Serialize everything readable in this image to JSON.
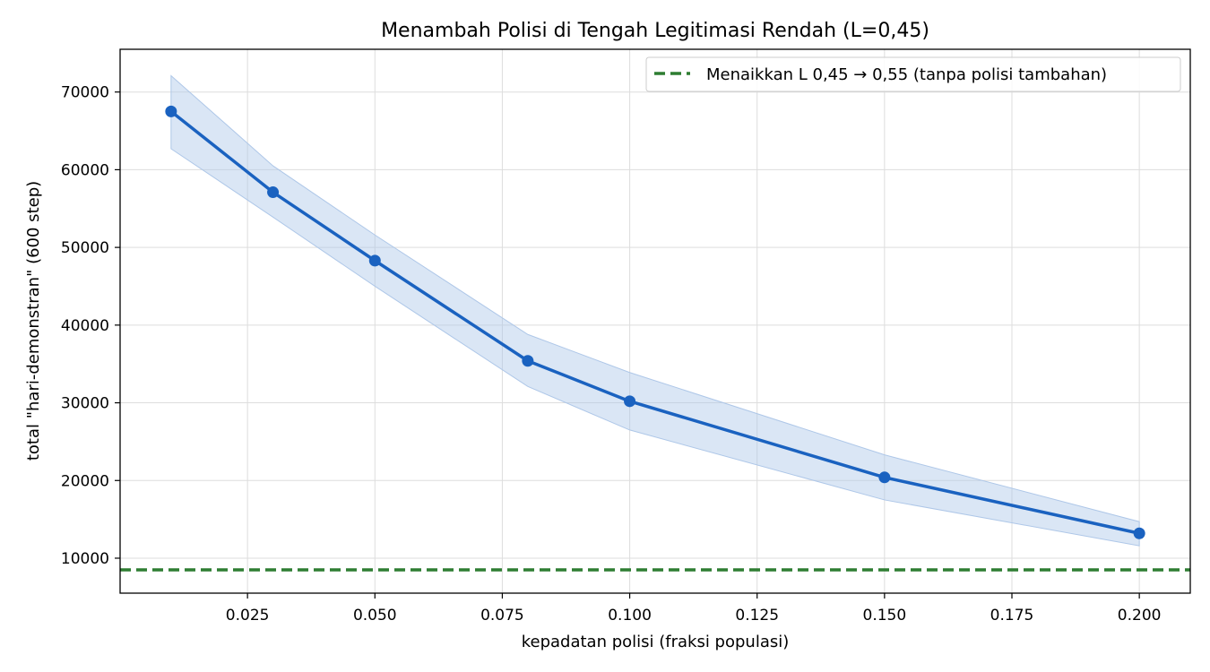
{
  "chart_data": {
    "type": "line",
    "title": "Menambah Polisi di Tengah Legitimasi Rendah (L=0,45)",
    "xlabel": "kepadatan polisi (fraksi populasi)",
    "ylabel": "total \"hari-demonstran\" (600 step)",
    "xlim": [
      0.0,
      0.21
    ],
    "ylim": [
      5500,
      75500
    ],
    "x_ticks": [
      0.025,
      0.05,
      0.075,
      0.1,
      0.125,
      0.15,
      0.175,
      0.2
    ],
    "x_tick_labels": [
      "0.025",
      "0.050",
      "0.075",
      "0.100",
      "0.125",
      "0.150",
      "0.175",
      "0.200"
    ],
    "y_ticks": [
      10000,
      20000,
      30000,
      40000,
      50000,
      60000,
      70000
    ],
    "y_tick_labels": [
      "10000",
      "20000",
      "30000",
      "40000",
      "50000",
      "60000",
      "70000"
    ],
    "grid": true,
    "series": [
      {
        "color": "#1a62c0",
        "x": [
          0.01,
          0.03,
          0.05,
          0.08,
          0.1,
          0.15,
          0.2
        ],
        "y": [
          67500,
          57100,
          48300,
          35400,
          30200,
          20400,
          13200
        ],
        "band_upper": [
          72100,
          60500,
          51600,
          38800,
          33900,
          23300,
          14700
        ],
        "band_lower": [
          62700,
          53900,
          45000,
          32100,
          26500,
          17500,
          11600
        ],
        "band_color": "#aec7e8"
      }
    ],
    "reference_line": {
      "label": "Menaikkan L 0,45 → 0,55 (tanpa polisi tambahan)",
      "y": 8500,
      "color": "#2e7d32",
      "style": "dashed"
    },
    "legend_position": "top-right"
  }
}
